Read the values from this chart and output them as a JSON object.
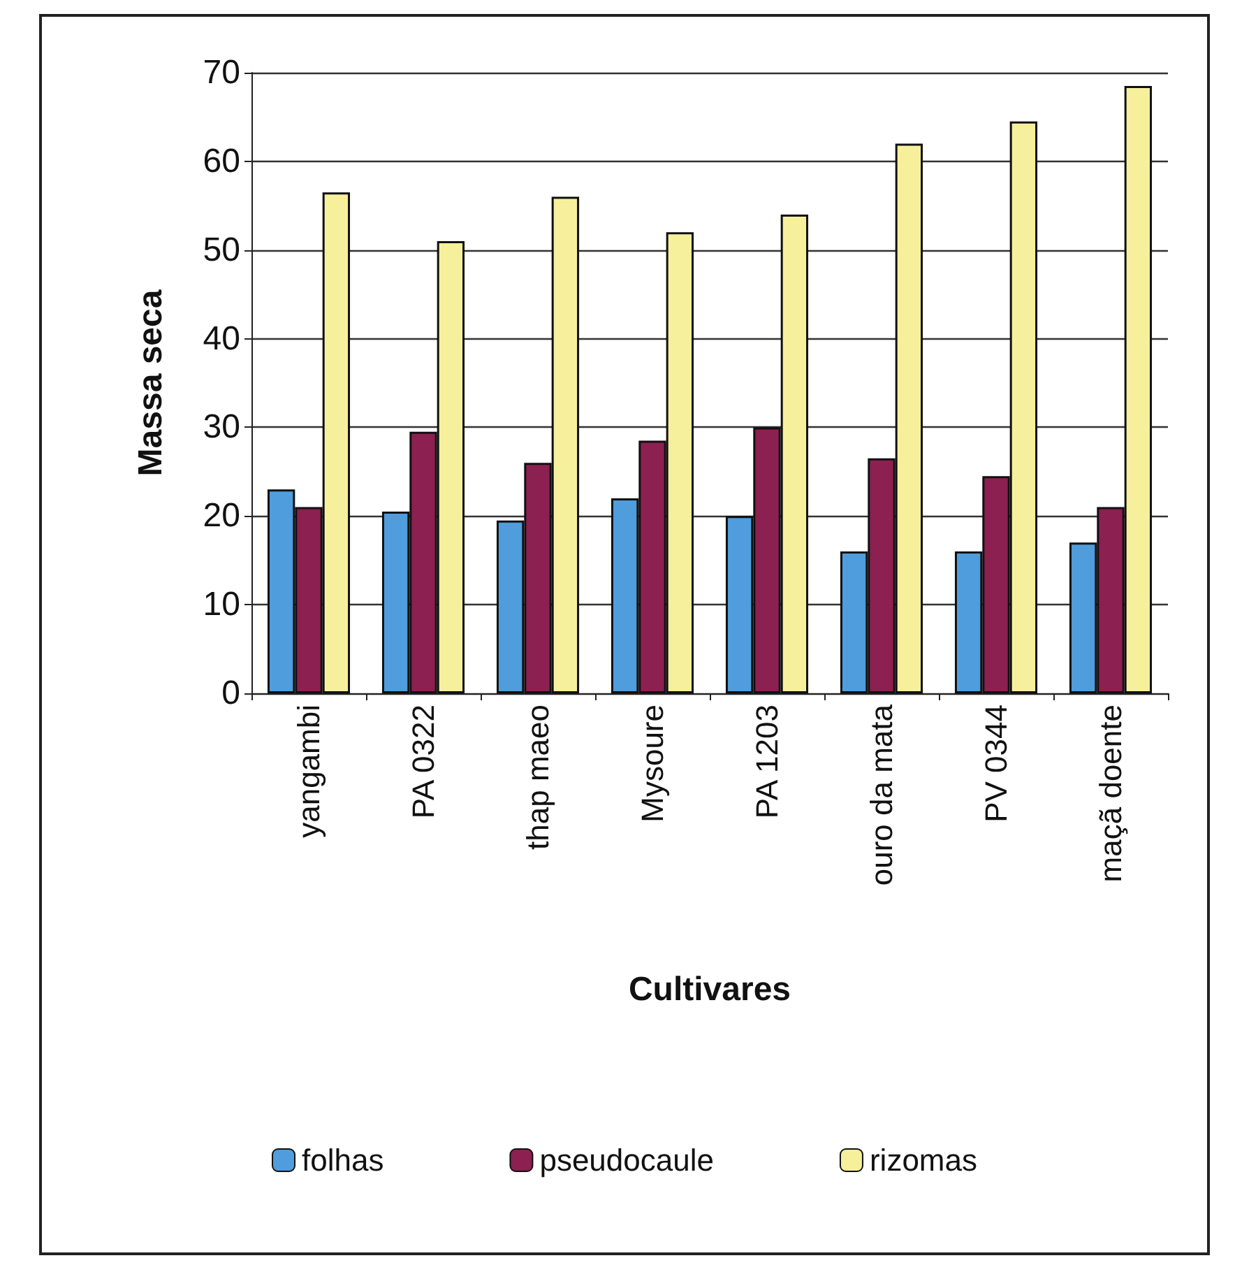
{
  "chart_data": {
    "type": "bar",
    "xlabel": "Cultivares",
    "ylabel": "Massa seca",
    "categories": [
      "yangambi",
      "PA 0322",
      "thap maeo",
      "Mysoure",
      "PA 1203",
      "ouro da mata",
      "PV 0344",
      "maçã doente"
    ],
    "series": [
      {
        "name": "folhas",
        "color": "#4f9ddc",
        "values": [
          23,
          20.5,
          19.5,
          22,
          20,
          16,
          16,
          17
        ]
      },
      {
        "name": "pseudocaule",
        "color": "#8c2050",
        "values": [
          21,
          29.5,
          26,
          28.5,
          30,
          26.5,
          24.5,
          21
        ]
      },
      {
        "name": "rizomas",
        "color": "#f6f09c",
        "values": [
          56.5,
          51,
          56,
          52,
          54,
          62,
          64.5,
          68.5
        ]
      }
    ],
    "ylim": [
      0,
      70
    ],
    "yticks": [
      0,
      10,
      20,
      30,
      40,
      50,
      60,
      70
    ],
    "grid": "y",
    "legend": "bottom"
  }
}
